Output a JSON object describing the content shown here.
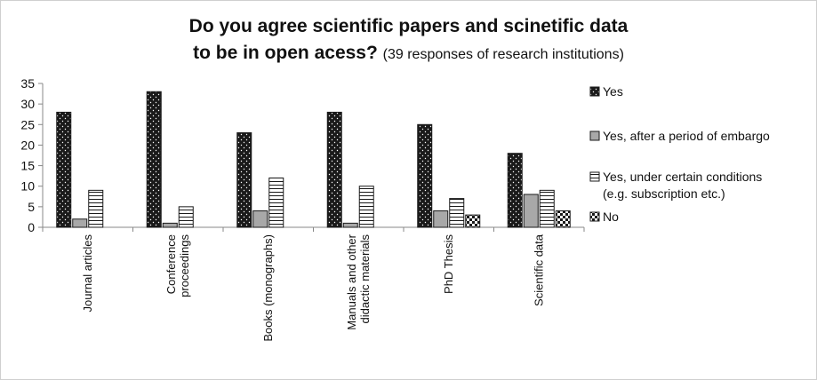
{
  "chart_data": {
    "type": "bar",
    "title_line1": "Do you agree scientific papers and scinetific data",
    "title_line2": "to be in open acess?",
    "subtitle": "(39 responses of research institutions)",
    "categories": [
      [
        "Journal articles"
      ],
      [
        "Conference",
        "proceedings"
      ],
      [
        "Books (monographs)"
      ],
      [
        "Manuals and other",
        "didactic materials"
      ],
      [
        "PhD Thesis"
      ],
      [
        "Scientific data"
      ]
    ],
    "series": [
      {
        "name": "Yes",
        "values": [
          28,
          33,
          23,
          28,
          25,
          18
        ],
        "pattern": "dots"
      },
      {
        "name": "Yes, after a period of embargo",
        "values": [
          2,
          1,
          4,
          1,
          4,
          8
        ],
        "pattern": "gray"
      },
      {
        "name": "Yes, under certain conditions",
        "name_line2": "(e.g. subscription etc.)",
        "values": [
          9,
          5,
          12,
          10,
          7,
          9
        ],
        "pattern": "hlines"
      },
      {
        "name": "No",
        "values": [
          0,
          0,
          0,
          0,
          3,
          4
        ],
        "pattern": "checker"
      }
    ],
    "yticks": [
      0,
      5,
      10,
      15,
      20,
      25,
      30,
      35
    ],
    "ylim": [
      0,
      35
    ],
    "grid": false,
    "legend": "right",
    "colors": {
      "dark": "#1a1a1a",
      "gray": "#a8a8a8",
      "axis": "#888888"
    }
  }
}
